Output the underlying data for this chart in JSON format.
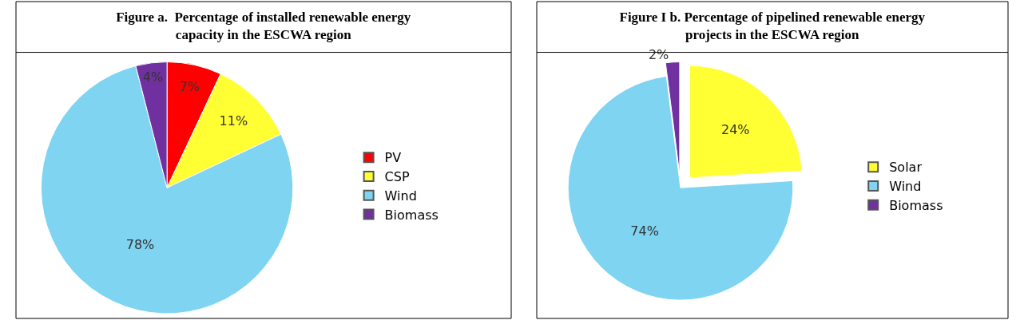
{
  "chart_data": [
    {
      "type": "pie",
      "title": "Figure a.  Percentage of installed renewable energy capacity in the ESCWA region",
      "categories": [
        "PV",
        "CSP",
        "Wind",
        "Biomass"
      ],
      "values": [
        7,
        11,
        78,
        4
      ],
      "value_labels": [
        "7%",
        "11%",
        "78%",
        "4%"
      ],
      "colors": [
        "#ff0000",
        "#ffff33",
        "#7fd4f2",
        "#7030a0"
      ],
      "legend": "right"
    },
    {
      "type": "pie",
      "title": "Figure I b. Percentage of pipelined renewable energy projects in the ESCWA region",
      "categories": [
        "Solar",
        "Wind",
        "Biomass"
      ],
      "values": [
        24,
        74,
        2
      ],
      "value_labels": [
        "24%",
        "74%",
        "2%"
      ],
      "colors": [
        "#ffff33",
        "#7fd4f2",
        "#7030a0"
      ],
      "legend": "right"
    }
  ]
}
